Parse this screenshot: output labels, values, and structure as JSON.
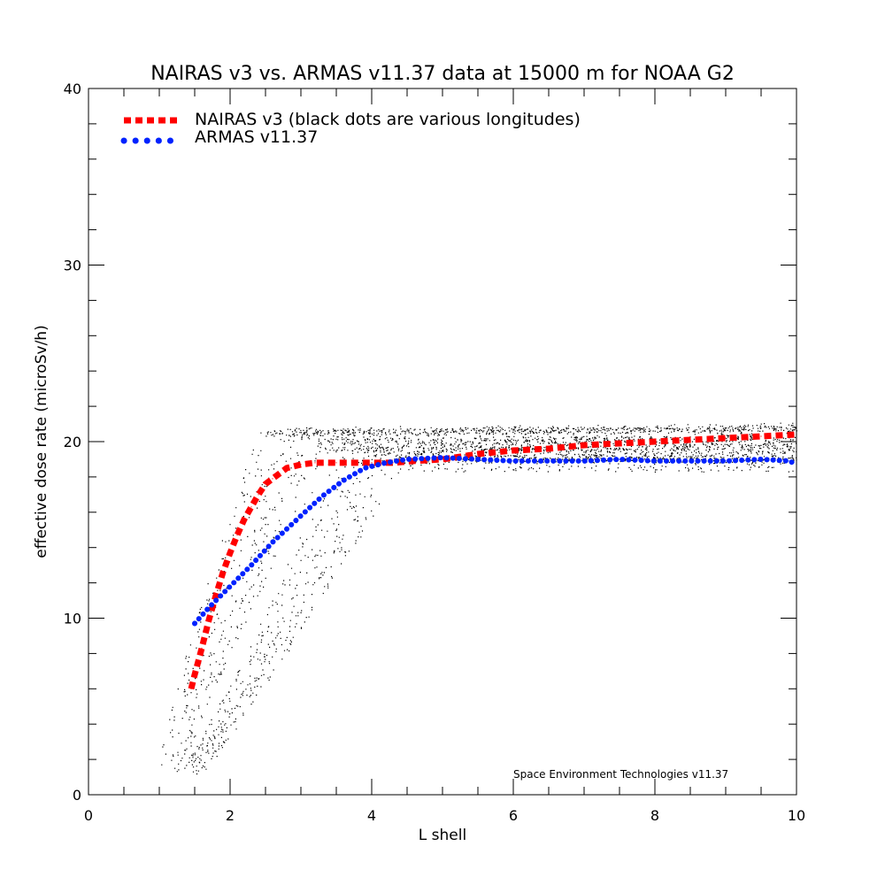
{
  "chart_data": {
    "type": "line",
    "title": "NAIRAS  v3 vs. ARMAS v11.37 data at 15000 m for NOAA G2",
    "xlabel": "L shell",
    "ylabel": "effective dose rate (microSv/h)",
    "xlim": [
      0,
      10
    ],
    "ylim": [
      0,
      40
    ],
    "x_ticks": [
      0,
      2,
      4,
      6,
      8,
      10
    ],
    "y_ticks": [
      0,
      10,
      20,
      30,
      40
    ],
    "grid": false,
    "legend_position": "top-left",
    "credit": "Space Environment Technologies v11.37",
    "colors": {
      "nairas": "#ff0000",
      "armas": "#0022ff",
      "scatter": "#000000"
    },
    "series": [
      {
        "name": "NAIRAS v3 (black dots are various longitudes)",
        "style": "dashed",
        "color": "#ff0000",
        "x": [
          1.45,
          1.5,
          1.6,
          1.7,
          1.8,
          1.9,
          2.0,
          2.1,
          2.2,
          2.3,
          2.4,
          2.5,
          2.6,
          2.7,
          2.8,
          3.0,
          3.2,
          3.5,
          3.8,
          4.0,
          4.3,
          4.6,
          5.0,
          5.5,
          6.0,
          6.5,
          7.0,
          7.5,
          8.0,
          8.5,
          9.0,
          9.5,
          10.0
        ],
        "y": [
          6.0,
          6.8,
          8.3,
          9.9,
          11.3,
          12.6,
          13.7,
          14.7,
          15.6,
          16.3,
          17.0,
          17.6,
          17.9,
          18.2,
          18.5,
          18.7,
          18.8,
          18.8,
          18.8,
          18.8,
          18.8,
          18.9,
          19.0,
          19.3,
          19.5,
          19.6,
          19.8,
          19.9,
          20.0,
          20.1,
          20.2,
          20.3,
          20.4
        ]
      },
      {
        "name": "ARMAS v11.37",
        "style": "dotted",
        "color": "#0022ff",
        "x": [
          1.5,
          1.7,
          2.0,
          2.3,
          2.6,
          3.0,
          3.3,
          3.6,
          3.9,
          4.2,
          4.5,
          5.0,
          5.5,
          6.0,
          6.5,
          7.0,
          7.5,
          8.0,
          8.5,
          9.0,
          9.5,
          9.9,
          10.0
        ],
        "y": [
          9.7,
          10.6,
          11.8,
          13.0,
          14.3,
          15.8,
          16.9,
          17.8,
          18.5,
          18.8,
          19.0,
          19.1,
          19.0,
          18.9,
          18.9,
          18.9,
          19.0,
          18.9,
          18.9,
          18.9,
          19.0,
          18.9,
          18.7
        ]
      }
    ]
  }
}
